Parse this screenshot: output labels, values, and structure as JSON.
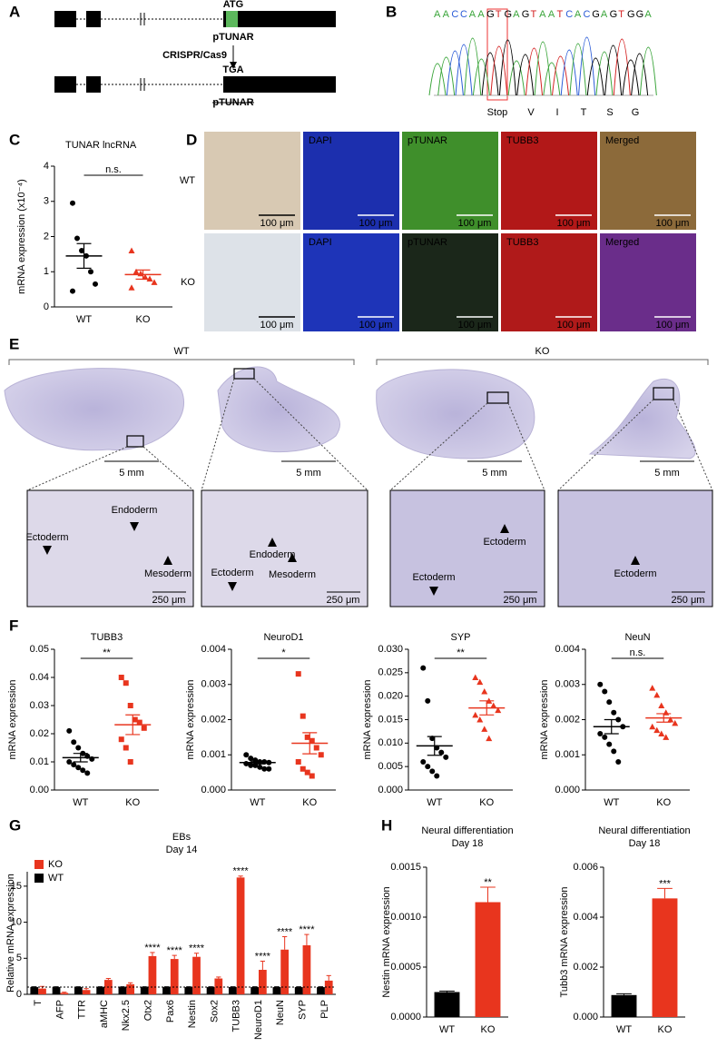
{
  "panel_labels": [
    "A",
    "B",
    "C",
    "D",
    "E",
    "F",
    "G",
    "H"
  ],
  "panel_a": {
    "wt_codon": "ATG",
    "ko_codon": "TGA",
    "gene": "pTUNAR",
    "method": "CRISPR/Cas9"
  },
  "panel_b": {
    "sequence": "AACCAAGTGAGTAATCACGAGTGGA",
    "labels": [
      "Stop",
      "V",
      "I",
      "T",
      "S",
      "G"
    ]
  },
  "panel_d": {
    "rows": [
      "WT",
      "KO"
    ],
    "channels": [
      "DAPI",
      "pTUNAR",
      "TUBB3",
      "Merged"
    ],
    "scale": "100 μm"
  },
  "panel_e": {
    "groups": [
      "WT",
      "KO"
    ],
    "scale_overview": "5 mm",
    "scale_zoom": "250 μm",
    "zoom_labels": [
      [
        "Ectoderm",
        "Endoderm",
        "Mesoderm"
      ],
      [
        "Endoderm",
        "Ectoderm",
        "Mesoderm"
      ],
      [
        "Ectoderm",
        "Ectoderm"
      ],
      [
        "Ectoderm"
      ]
    ]
  },
  "chart_data": [
    {
      "type": "strip",
      "title": "TUNAR lncRNA",
      "y_label": "mRNA expression (x10⁻⁴)",
      "categories": [
        "WT",
        "KO"
      ],
      "ylim": [
        0,
        4
      ],
      "yticks": [
        0,
        1,
        2,
        3,
        4
      ],
      "annotation": "n.s.",
      "groups": [
        {
          "color": "#000000",
          "marker": "circle",
          "values": [
            2.95,
            1.95,
            1.6,
            1.45,
            1.0,
            0.65,
            0.45
          ],
          "mean": 1.45,
          "sem": 0.35
        },
        {
          "color": "#e8351e",
          "marker": "triangle",
          "values": [
            1.6,
            1.0,
            0.95,
            0.85,
            0.8,
            0.7,
            0.55
          ],
          "mean": 0.92,
          "sem": 0.13
        }
      ]
    },
    {
      "type": "strip",
      "title": "TUBB3",
      "y_label": "mRNA expression",
      "categories": [
        "WT",
        "KO"
      ],
      "ylim": [
        0,
        0.05
      ],
      "yticks": [
        {
          "value": 0,
          "label": "0.00"
        },
        0.01,
        0.02,
        0.03,
        0.04,
        0.05
      ],
      "annotation": "**",
      "groups": [
        {
          "color": "#000000",
          "marker": "circle",
          "values": [
            0.021,
            0.017,
            0.015,
            0.013,
            0.012,
            0.011,
            0.01,
            0.009,
            0.008,
            0.007,
            0.006
          ],
          "mean": 0.0115,
          "sem": 0.0015
        },
        {
          "color": "#e8351e",
          "marker": "square",
          "values": [
            0.04,
            0.038,
            0.03,
            0.025,
            0.024,
            0.022,
            0.018,
            0.015,
            0.01
          ],
          "mean": 0.0232,
          "sem": 0.0035
        }
      ]
    },
    {
      "type": "strip",
      "title": "NeuroD1",
      "y_label": "mRNA expression",
      "categories": [
        "WT",
        "KO"
      ],
      "ylim": [
        0,
        0.004
      ],
      "yticks": [
        {
          "value": 0,
          "label": "0.000"
        },
        0.001,
        0.002,
        0.003,
        0.004
      ],
      "annotation": "*",
      "groups": [
        {
          "color": "#000000",
          "marker": "circle",
          "values": [
            0.001,
            0.0009,
            0.00085,
            0.0008,
            0.0008,
            0.00078,
            0.00075,
            0.0007,
            0.0007,
            0.00065,
            0.0006,
            0.0006
          ],
          "mean": 0.00078,
          "sem": 4e-05
        },
        {
          "color": "#e8351e",
          "marker": "square",
          "values": [
            0.0033,
            0.0021,
            0.0015,
            0.0014,
            0.0012,
            0.001,
            0.0008,
            0.0006,
            0.0005,
            0.0004
          ],
          "mean": 0.00133,
          "sem": 0.0003
        }
      ]
    },
    {
      "type": "strip",
      "title": "SYP",
      "y_label": "mRNA expression",
      "categories": [
        "WT",
        "KO"
      ],
      "ylim": [
        0,
        0.03
      ],
      "yticks": [
        {
          "value": 0,
          "label": "0.000"
        },
        0.005,
        {
          "value": 0.01,
          "label": "0.010"
        },
        0.015,
        {
          "value": 0.02,
          "label": "0.020"
        },
        0.025,
        {
          "value": 0.03,
          "label": "0.030"
        }
      ],
      "annotation": "**",
      "groups": [
        {
          "color": "#000000",
          "marker": "circle",
          "values": [
            0.026,
            0.019,
            0.011,
            0.009,
            0.008,
            0.007,
            0.006,
            0.005,
            0.004,
            0.003
          ],
          "mean": 0.0094,
          "sem": 0.002
        },
        {
          "color": "#e8351e",
          "marker": "triangle",
          "values": [
            0.024,
            0.023,
            0.021,
            0.019,
            0.018,
            0.017,
            0.016,
            0.015,
            0.013,
            0.011
          ],
          "mean": 0.0175,
          "sem": 0.0015
        }
      ]
    },
    {
      "type": "strip",
      "title": "NeuN",
      "y_label": "mRNA expression",
      "categories": [
        "WT",
        "KO"
      ],
      "ylim": [
        0,
        0.004
      ],
      "yticks": [
        {
          "value": 0,
          "label": "0.000"
        },
        0.001,
        0.002,
        0.003,
        0.004
      ],
      "annotation": "n.s.",
      "groups": [
        {
          "color": "#000000",
          "marker": "circle",
          "values": [
            0.003,
            0.0028,
            0.0025,
            0.0022,
            0.002,
            0.0018,
            0.0016,
            0.0015,
            0.0013,
            0.0011,
            0.0008
          ],
          "mean": 0.0018,
          "sem": 0.0002
        },
        {
          "color": "#e8351e",
          "marker": "triangle",
          "values": [
            0.0029,
            0.0027,
            0.0024,
            0.0022,
            0.002,
            0.0019,
            0.0018,
            0.0017,
            0.0016,
            0.0015
          ],
          "mean": 0.00205,
          "sem": 0.00012
        }
      ]
    },
    {
      "type": "bar",
      "title": "EBs",
      "subtitle": "Day 14",
      "y_label": "Relative mRNA expression",
      "categories": [
        "T",
        "AFP",
        "TTR",
        "aMHC",
        "Nkx2.5",
        "Otx2",
        "Pax6",
        "Nestin",
        "Sox2",
        "TUBB3",
        "NeuroD1",
        "NeuN",
        "SYP",
        "PLP"
      ],
      "ylim": [
        0,
        17
      ],
      "yticks": [
        0,
        5,
        10,
        15
      ],
      "reference_line": 1,
      "legend": "upper left",
      "series": [
        {
          "name": "KO",
          "color": "#e8351e",
          "values": [
            0.8,
            0.2,
            0.6,
            2.0,
            1.4,
            5.3,
            4.9,
            5.2,
            2.2,
            16.2,
            3.4,
            6.2,
            6.8,
            1.9
          ],
          "errors": [
            0.3,
            0.1,
            0.2,
            0.2,
            0.2,
            0.5,
            0.5,
            0.5,
            0.2,
            0.2,
            1.2,
            1.8,
            1.5,
            0.7
          ],
          "annotations": [
            null,
            null,
            null,
            null,
            null,
            "****",
            "****",
            "****",
            null,
            "****",
            "****",
            "****",
            "****",
            null
          ]
        },
        {
          "name": "WT",
          "color": "#000000",
          "values": [
            1,
            1,
            1,
            1,
            1,
            1,
            1,
            1,
            1,
            1,
            1,
            1,
            1,
            1
          ],
          "errors": [
            0.05,
            0.05,
            0.05,
            0.05,
            0.05,
            0.05,
            0.05,
            0.05,
            0.05,
            0.05,
            0.05,
            0.05,
            0.05,
            0.05
          ]
        }
      ]
    },
    {
      "type": "bar",
      "title": "Neural differentiation",
      "subtitle": "Day 18",
      "y_label": "Nestin mRNA expression",
      "categories": [
        "WT",
        "KO"
      ],
      "ylim": [
        0,
        0.0015
      ],
      "yticks": [
        {
          "value": 0,
          "label": "0.0000"
        },
        0.0005,
        {
          "value": 0.001,
          "label": "0.0010"
        },
        0.0015
      ],
      "series": [
        {
          "colors": [
            "#000000",
            "#e8351e"
          ],
          "values": [
            0.00025,
            0.00115
          ],
          "errors": [
            1e-05,
            0.00015
          ],
          "annotations": [
            null,
            "**"
          ]
        }
      ]
    },
    {
      "type": "bar",
      "title": "Neural differentiation",
      "subtitle": "Day 18",
      "y_label": "Tubb3 mRNA expression",
      "categories": [
        "WT",
        "KO"
      ],
      "ylim": [
        0,
        0.006
      ],
      "yticks": [
        {
          "value": 0,
          "label": "0.000"
        },
        0.002,
        0.004,
        0.006
      ],
      "series": [
        {
          "colors": [
            "#000000",
            "#e8351e"
          ],
          "values": [
            0.00088,
            0.00475
          ],
          "errors": [
            5e-05,
            0.0004
          ],
          "annotations": [
            null,
            "***"
          ]
        }
      ]
    }
  ]
}
